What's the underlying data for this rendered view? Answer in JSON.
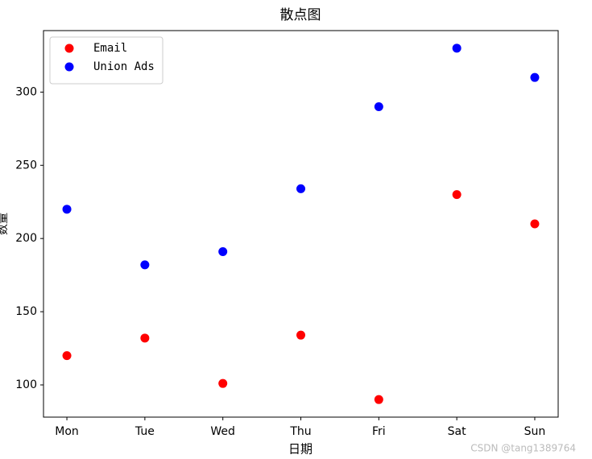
{
  "chart_data": {
    "type": "scatter",
    "title": "散点图",
    "x_label": "日期",
    "y_label": "数量",
    "categories": [
      "Mon",
      "Tue",
      "Wed",
      "Thu",
      "Fri",
      "Sat",
      "Sun"
    ],
    "series": [
      {
        "name": "Email",
        "color": "#ff0000",
        "values": [
          120,
          132,
          101,
          134,
          90,
          230,
          210
        ]
      },
      {
        "name": "Union Ads",
        "color": "#0000ff",
        "values": [
          220,
          182,
          191,
          234,
          290,
          330,
          310
        ]
      }
    ],
    "ylim": [
      78,
      342
    ],
    "yticks": [
      100,
      150,
      200,
      250,
      300
    ],
    "grid": false,
    "legend": "upper-left",
    "watermark": "CSDN @tang1389764"
  }
}
